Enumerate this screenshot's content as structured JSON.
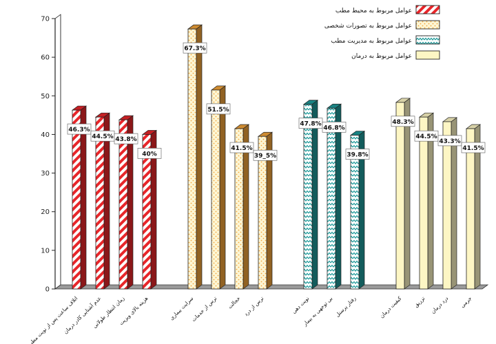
{
  "chart_data": {
    "type": "bar",
    "ylim": [
      0,
      70
    ],
    "yticks": [
      0,
      10,
      20,
      30,
      40,
      50,
      60,
      70
    ],
    "grid": false,
    "legend_position": "top-right",
    "style": "3d-columns",
    "groups": [
      {
        "name": "عوامل مربوط به محیط مطب",
        "pattern": "red-diagonal-stripes",
        "color": "#e8262a",
        "categories": [
          "اتلاف ساعت پس از نوبت مطب",
          "عدم آشنایی کادر درمان",
          "زمان انتظار طولانی",
          "هزینه بالای ویزیت"
        ],
        "values": [
          46.3,
          44.5,
          43.8,
          40
        ],
        "labels": [
          "46.3%",
          "44.5%",
          "43.8%",
          "40%"
        ]
      },
      {
        "name": "عوامل مربوط به تصورات شخصی",
        "pattern": "orange-dots",
        "color": "#f2a43a",
        "categories": [
          "سرایت بیماری",
          "ترس از خدمات",
          "خجالت",
          "ترس از درد"
        ],
        "values": [
          67.3,
          51.5,
          41.5,
          39.5
        ],
        "labels": [
          "67.3%",
          "51.5%",
          "41.5%",
          "39_5%"
        ]
      },
      {
        "name": "عوامل مربوط به مدیریت مطب",
        "pattern": "teal-zigzag",
        "color": "#1f9a9a",
        "categories": [
          "نوبت دهی",
          "بی توجهی به بیمار",
          "رفتار پرسنل"
        ],
        "values": [
          47.8,
          46.8,
          39.8
        ],
        "labels": [
          "47.8%",
          "46.8%",
          "39.8%"
        ]
      },
      {
        "name": "عوامل مربوط به درمان",
        "pattern": "plain-cream",
        "color": "#fdf6c4",
        "categories": [
          "کیفیت درمان",
          "تزریق",
          "درد درمان",
          "جرمی"
        ],
        "values": [
          48.3,
          44.5,
          43.3,
          41.5
        ],
        "labels": [
          "48.3%",
          "44.5%",
          "43.3%",
          "41.5%"
        ]
      }
    ]
  }
}
